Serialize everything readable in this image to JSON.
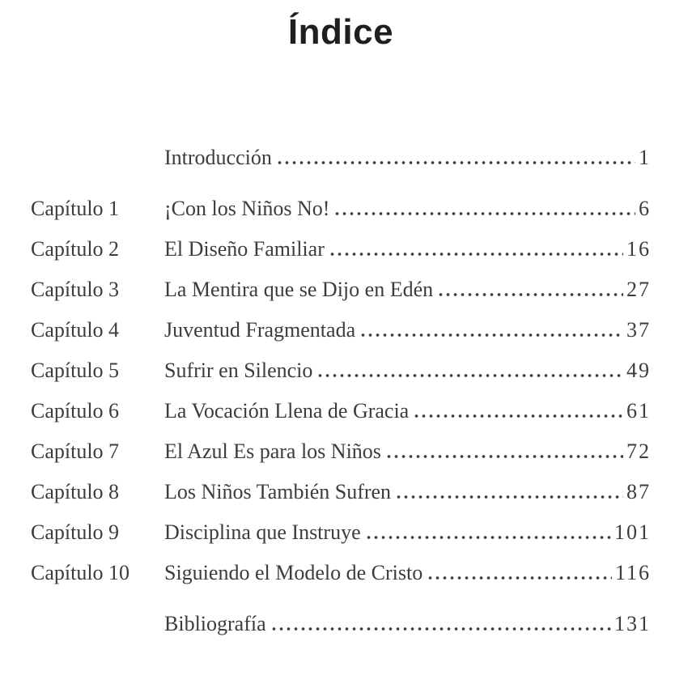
{
  "page": {
    "title": "Índice"
  },
  "colors": {
    "background": "#ffffff",
    "title_text": "#1f1f1f",
    "body_text": "#3c3c3c",
    "dot_leader": "#3e3e3e"
  },
  "toc": {
    "entries": [
      {
        "chapter": "",
        "title": "Introducción",
        "page": "1"
      },
      {
        "chapter": "Capítulo 1",
        "title": "¡Con los Niños No!",
        "page": "6"
      },
      {
        "chapter": "Capítulo 2",
        "title": "El Diseño Familiar",
        "page": "16"
      },
      {
        "chapter": "Capítulo 3",
        "title": "La Mentira que se Dijo en Edén",
        "page": "27"
      },
      {
        "chapter": "Capítulo 4",
        "title": "Juventud Fragmentada",
        "page": "37"
      },
      {
        "chapter": "Capítulo 5",
        "title": "Sufrir en Silencio",
        "page": "49"
      },
      {
        "chapter": "Capítulo 6",
        "title": "La Vocación Llena de Gracia",
        "page": "61"
      },
      {
        "chapter": "Capítulo 7",
        "title": "El Azul Es para los Niños",
        "page": "72"
      },
      {
        "chapter": "Capítulo 8",
        "title": "Los Niños También Sufren",
        "page": "87"
      },
      {
        "chapter": "Capítulo 9",
        "title": "Disciplina que Instruye",
        "page": "101"
      },
      {
        "chapter": "Capítulo 10",
        "title": "Siguiendo el Modelo de Cristo",
        "page": "116"
      },
      {
        "chapter": "",
        "title": "Bibliografía",
        "page": "131"
      }
    ]
  }
}
